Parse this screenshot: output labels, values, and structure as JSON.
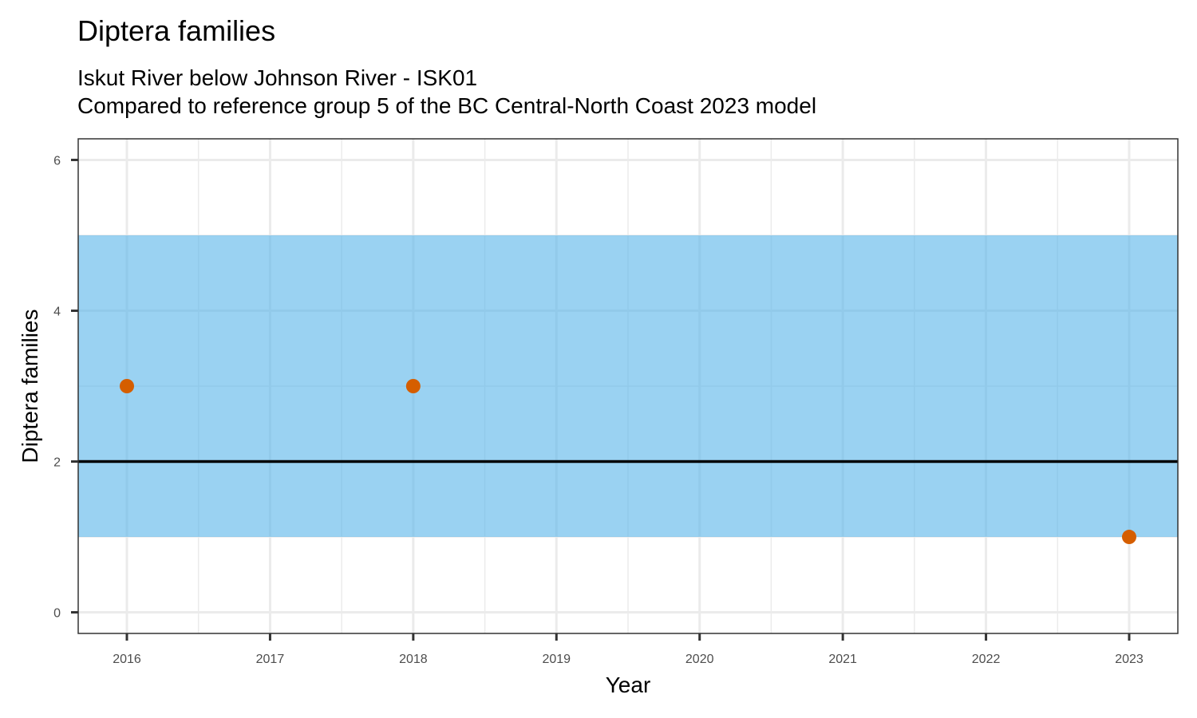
{
  "chart_data": {
    "type": "scatter",
    "title": "Diptera families",
    "subtitle": [
      "Iskut River below Johnson River - ISK01",
      "Compared to reference group 5 of the BC Central-North Coast 2023 model"
    ],
    "xlabel": "Year",
    "ylabel": "Diptera families",
    "x_ticks": [
      2016,
      2017,
      2018,
      2019,
      2020,
      2021,
      2022,
      2023
    ],
    "y_ticks": [
      0,
      2,
      4,
      6
    ],
    "xlim": [
      2015.66,
      2023.34
    ],
    "ylim": [
      -0.28,
      6.28
    ],
    "grid": true,
    "points": [
      {
        "x": 2016,
        "y": 3
      },
      {
        "x": 2018,
        "y": 3
      },
      {
        "x": 2023,
        "y": 1
      }
    ],
    "reference_band": {
      "ymin": 1,
      "ymax": 5
    },
    "reference_line": {
      "y": 2
    },
    "colors": {
      "points": "#d55e00",
      "band": "#56b4e9",
      "line": "#000000",
      "grid": "#ebebeb",
      "panel_border": "#333333"
    }
  }
}
